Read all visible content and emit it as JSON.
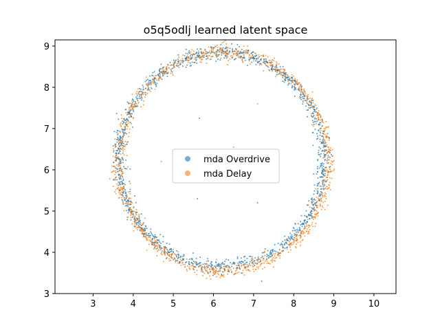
{
  "chart_data": {
    "type": "scatter",
    "title": "o5q5odlj learned latent space",
    "xlabel": "",
    "ylabel": "",
    "xlim": [
      2.05,
      10.55
    ],
    "ylim": [
      3.0,
      9.15
    ],
    "xticks": [
      "3",
      "4",
      "5",
      "6",
      "7",
      "8",
      "9",
      "10"
    ],
    "yticks": [
      "3",
      "4",
      "5",
      "6",
      "7",
      "8",
      "9"
    ],
    "grid": false,
    "legend_position": "center",
    "series": [
      {
        "name": "mda Overdrive",
        "color": "#1f77b4",
        "shape": "ring",
        "center": [
          6.2,
          6.25
        ],
        "radius": [
          2.55,
          2.6
        ],
        "approx_points": 1400
      },
      {
        "name": "mda Delay",
        "color": "#ff7f0e",
        "shape": "ring",
        "center": [
          6.25,
          6.2
        ],
        "radius": [
          2.6,
          2.65
        ],
        "approx_points": 1400
      }
    ],
    "outliers": [
      {
        "x": 5.65,
        "y": 7.25
      },
      {
        "x": 4.7,
        "y": 6.2
      },
      {
        "x": 5.6,
        "y": 5.3
      },
      {
        "x": 7.1,
        "y": 7.6
      },
      {
        "x": 7.1,
        "y": 5.2
      },
      {
        "x": 6.5,
        "y": 6.55
      },
      {
        "x": 7.2,
        "y": 3.3
      }
    ]
  }
}
